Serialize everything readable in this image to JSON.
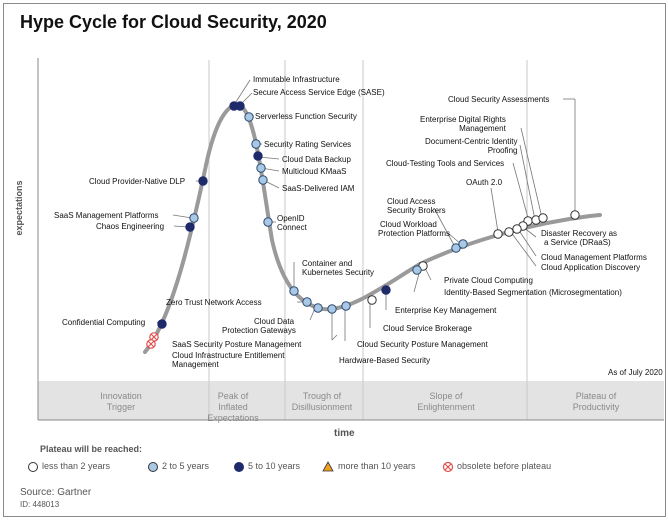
{
  "title": "Hype Cycle for Cloud Security, 2020",
  "axis": {
    "y_label": "expectations",
    "x_label": "time"
  },
  "as_of": "As of July 2020",
  "phases": [
    {
      "id": "innovation",
      "line1": "Innovation",
      "line2": "Trigger",
      "line3": ""
    },
    {
      "id": "peak",
      "line1": "Peak of",
      "line2": "Inflated",
      "line3": "Expectations"
    },
    {
      "id": "trough",
      "line1": "Trough of",
      "line2": "Disillusionment",
      "line3": ""
    },
    {
      "id": "slope",
      "line1": "Slope of",
      "line2": "Enlightenment",
      "line3": ""
    },
    {
      "id": "plateau",
      "line1": "Plateau of",
      "line2": "Productivity",
      "line3": ""
    }
  ],
  "legend": {
    "title": "Plateau will be reached:",
    "items": [
      {
        "marker": "white-circle",
        "label": "less than 2 years",
        "color": "#ffffff"
      },
      {
        "marker": "lightblue-circle",
        "label": "2 to 5 years",
        "color": "#a8c8e6"
      },
      {
        "marker": "navy-circle",
        "label": "5 to 10 years",
        "color": "#1e2a6a"
      },
      {
        "marker": "orange-triangle",
        "label": "more than 10 years",
        "color": "#f0a020"
      },
      {
        "marker": "red-crossed-circle",
        "label": "obsolete before plateau",
        "color": "#e05050"
      }
    ]
  },
  "source": "Source: Gartner",
  "doc_id": "ID: 448013",
  "technologies": [
    {
      "name": "Immutable Infrastructure",
      "category": "5 to 10 years"
    },
    {
      "name": "Secure Access Service Edge (SASE)",
      "category": "5 to 10 years"
    },
    {
      "name": "Serverless Function Security",
      "category": "2 to 5 years"
    },
    {
      "name": "Security Rating Services",
      "category": "2 to 5 years"
    },
    {
      "name": "Cloud Data Backup",
      "category": "5 to 10 years"
    },
    {
      "name": "Multicloud KMaaS",
      "category": "2 to 5 years"
    },
    {
      "name": "SaaS-Delivered IAM",
      "category": "2 to 5 years"
    },
    {
      "name": "Cloud Provider-Native DLP",
      "category": "5 to 10 years"
    },
    {
      "name": "SaaS Management Platforms",
      "category": "2 to 5 years"
    },
    {
      "name": "Chaos Engineering",
      "category": "5 to 10 years"
    },
    {
      "name": "OpenID",
      "name2": "Connect",
      "category": "2 to 5 years"
    },
    {
      "name": "Container and",
      "name2": "Kubernetes Security",
      "category": "2 to 5 years"
    },
    {
      "name": "Zero Trust Network Access",
      "category": "2 to 5 years"
    },
    {
      "name": "Cloud Data",
      "name2": "Protection Gateways",
      "category": "2 to 5 years"
    },
    {
      "name": "Confidential Computing",
      "category": "5 to 10 years"
    },
    {
      "name": "SaaS Security Posture Management",
      "category": "obsolete before plateau"
    },
    {
      "name": "Cloud Infrastructure Entitlement",
      "name2": "Management",
      "category": "obsolete before plateau"
    },
    {
      "name": "Hardware-Based Security",
      "category": "2 to 5 years"
    },
    {
      "name": "Cloud Security Posture Management",
      "category": "2 to 5 years"
    },
    {
      "name": "Cloud Service Brokerage",
      "category": "5 to 10 years"
    },
    {
      "name": "Enterprise Key Management",
      "category": "less than 2 years"
    },
    {
      "name": "Identity-Based Segmentation (Microsegmentation)",
      "category": "less than 2 years"
    },
    {
      "name": "Private Cloud Computing",
      "category": "2 to 5 years"
    },
    {
      "name": "Cloud Access",
      "name2": "Security Brokers",
      "category": "2 to 5 years"
    },
    {
      "name": "Cloud Workload",
      "name2": "Protection Platforms",
      "category": "2 to 5 years"
    },
    {
      "name": "OAuth 2.0",
      "category": "less than 2 years"
    },
    {
      "name": "Cloud-Testing Tools and Services",
      "category": "less than 2 years"
    },
    {
      "name": "Document-Centric Identity",
      "name2": "Proofing",
      "category": "less than 2 years"
    },
    {
      "name": "Enterprise Digital Rights",
      "name2": "Management",
      "category": "less than 2 years"
    },
    {
      "name": "Cloud Security Assessments",
      "category": "less than 2 years"
    },
    {
      "name": "Disaster Recovery as",
      "name2": "a Service (DRaaS)",
      "category": "less than 2 years"
    },
    {
      "name": "Cloud Management Platforms",
      "category": "less than 2 years"
    },
    {
      "name": "Cloud Application Discovery",
      "category": "less than 2 years"
    }
  ]
}
